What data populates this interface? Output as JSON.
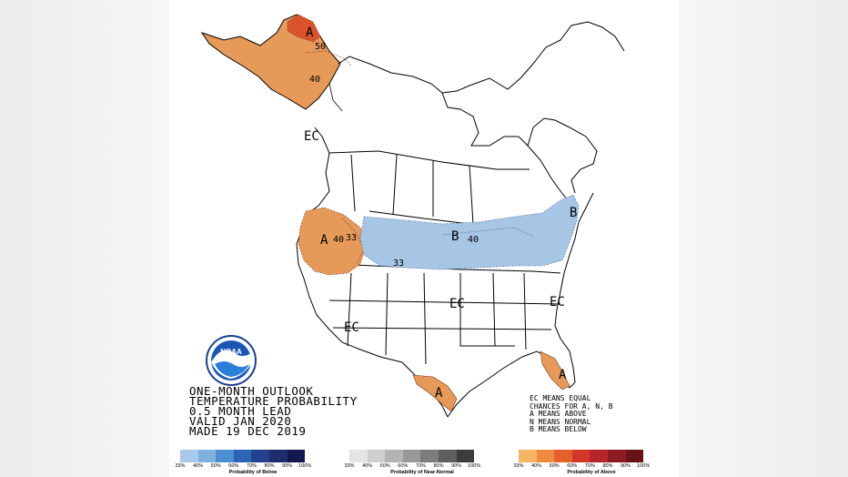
{
  "title_lines": [
    "ONE-MONTH OUTLOOK",
    "TEMPERATURE PROBABILITY",
    "0.5 MONTH LEAD",
    "VALID JAN 2020",
    "MADE 19 DEC 2019"
  ],
  "legend_lines": [
    "EC MEANS EQUAL",
    "CHANCES FOR A, N, B",
    "A MEANS ABOVE",
    "N MEANS NORMAL",
    "B MEANS BELOW"
  ],
  "logo_text": "NOAA",
  "map_labels": {
    "alaska_a": "A",
    "alaska_50": "50",
    "alaska_40": "40",
    "ec_nw": "EC",
    "pnw_a": "A",
    "pnw_40": "40",
    "pnw_33": "33",
    "north_b": "B",
    "north_40": "40",
    "north_33": "33",
    "ne_b": "B",
    "ec_central": "EC",
    "ec_east": "EC",
    "ec_sw": "EC",
    "texas_a": "A",
    "florida_a": "A"
  },
  "scale_ticks": [
    "33%",
    "40%",
    "50%",
    "60%",
    "70%",
    "80%",
    "90%",
    "100%"
  ],
  "scales": [
    {
      "caption": "Probability of Below",
      "colors": [
        "#a9c8ea",
        "#7fb0e0",
        "#4b8fd1",
        "#2d64b4",
        "#23418c",
        "#1d2c6d",
        "#141650"
      ]
    },
    {
      "caption": "Probability of Near-Normal",
      "colors": [
        "#e6e3e6",
        "#cfcfcf",
        "#b3b3b3",
        "#989898",
        "#7c7c7c",
        "#5f5f5f",
        "#3c3c3c"
      ]
    },
    {
      "caption": "Probability of Above",
      "colors": [
        "#f5b466",
        "#ef8a40",
        "#e4612c",
        "#d3362a",
        "#b8242c",
        "#8e1b22",
        "#6a1316"
      ]
    }
  ],
  "colors": {
    "above_40": "#e69a5a",
    "above_50": "#d9542c",
    "above_33": "#f3bd84",
    "below_33": "#a7c6e6",
    "border": "#000000"
  }
}
